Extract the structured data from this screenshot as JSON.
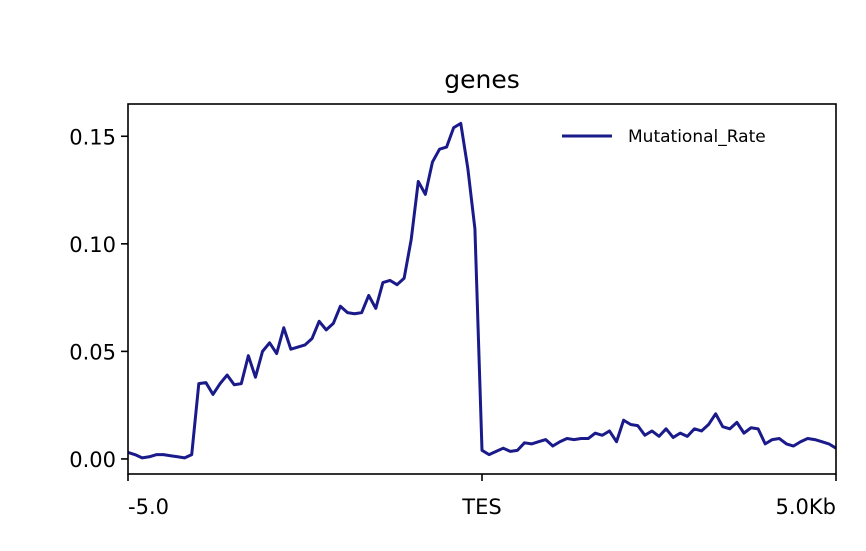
{
  "chart_data": {
    "type": "line",
    "title": "genes",
    "xlabel": "",
    "ylabel": "",
    "x_ticks": [
      {
        "value": -5.0,
        "label": "-5.0"
      },
      {
        "value": 0,
        "label": "TES"
      },
      {
        "value": 5.0,
        "label": "5.0Kb"
      }
    ],
    "y_ticks": [
      {
        "value": 0.0,
        "label": "0.00"
      },
      {
        "value": 0.05,
        "label": "0.05"
      },
      {
        "value": 0.1,
        "label": "0.10"
      },
      {
        "value": 0.15,
        "label": "0.15"
      }
    ],
    "xlim": [
      -5.0,
      5.0
    ],
    "ylim": [
      -0.007,
      0.165
    ],
    "grid": false,
    "legend_position": "top-right",
    "series": [
      {
        "name": "Mutational_Rate",
        "color": "#1a1a8a",
        "points": [
          [
            -5.0,
            0.003
          ],
          [
            -4.9,
            0.002
          ],
          [
            -4.8,
            0.0005
          ],
          [
            -4.7,
            0.001
          ],
          [
            -4.6,
            0.002
          ],
          [
            -4.5,
            0.002
          ],
          [
            -4.4,
            0.0015
          ],
          [
            -4.3,
            0.001
          ],
          [
            -4.2,
            0.0005
          ],
          [
            -4.1,
            0.002
          ],
          [
            -4.0,
            0.035
          ],
          [
            -3.9,
            0.0355
          ],
          [
            -3.8,
            0.03
          ],
          [
            -3.7,
            0.035
          ],
          [
            -3.6,
            0.039
          ],
          [
            -3.5,
            0.0345
          ],
          [
            -3.4,
            0.035
          ],
          [
            -3.3,
            0.048
          ],
          [
            -3.2,
            0.038
          ],
          [
            -3.1,
            0.05
          ],
          [
            -3.0,
            0.054
          ],
          [
            -2.9,
            0.049
          ],
          [
            -2.8,
            0.061
          ],
          [
            -2.7,
            0.051
          ],
          [
            -2.6,
            0.052
          ],
          [
            -2.5,
            0.053
          ],
          [
            -2.4,
            0.056
          ],
          [
            -2.3,
            0.064
          ],
          [
            -2.2,
            0.06
          ],
          [
            -2.1,
            0.063
          ],
          [
            -2.0,
            0.071
          ],
          [
            -1.9,
            0.068
          ],
          [
            -1.8,
            0.0675
          ],
          [
            -1.7,
            0.068
          ],
          [
            -1.6,
            0.076
          ],
          [
            -1.5,
            0.07
          ],
          [
            -1.4,
            0.082
          ],
          [
            -1.3,
            0.083
          ],
          [
            -1.2,
            0.081
          ],
          [
            -1.1,
            0.084
          ],
          [
            -1.0,
            0.102
          ],
          [
            -0.9,
            0.129
          ],
          [
            -0.8,
            0.123
          ],
          [
            -0.7,
            0.138
          ],
          [
            -0.6,
            0.144
          ],
          [
            -0.5,
            0.145
          ],
          [
            -0.4,
            0.154
          ],
          [
            -0.3,
            0.156
          ],
          [
            -0.2,
            0.135
          ],
          [
            -0.1,
            0.107
          ],
          [
            0.0,
            0.004
          ],
          [
            0.1,
            0.002
          ],
          [
            0.2,
            0.0035
          ],
          [
            0.3,
            0.005
          ],
          [
            0.4,
            0.0035
          ],
          [
            0.5,
            0.004
          ],
          [
            0.6,
            0.0075
          ],
          [
            0.7,
            0.007
          ],
          [
            0.8,
            0.008
          ],
          [
            0.9,
            0.009
          ],
          [
            1.0,
            0.006
          ],
          [
            1.1,
            0.008
          ],
          [
            1.2,
            0.0095
          ],
          [
            1.3,
            0.009
          ],
          [
            1.4,
            0.0095
          ],
          [
            1.5,
            0.0095
          ],
          [
            1.6,
            0.012
          ],
          [
            1.7,
            0.011
          ],
          [
            1.8,
            0.013
          ],
          [
            1.9,
            0.008
          ],
          [
            2.0,
            0.018
          ],
          [
            2.1,
            0.016
          ],
          [
            2.2,
            0.0155
          ],
          [
            2.3,
            0.011
          ],
          [
            2.4,
            0.013
          ],
          [
            2.5,
            0.0105
          ],
          [
            2.6,
            0.014
          ],
          [
            2.7,
            0.01
          ],
          [
            2.8,
            0.012
          ],
          [
            2.9,
            0.0105
          ],
          [
            3.0,
            0.014
          ],
          [
            3.1,
            0.013
          ],
          [
            3.2,
            0.016
          ],
          [
            3.3,
            0.021
          ],
          [
            3.4,
            0.015
          ],
          [
            3.5,
            0.014
          ],
          [
            3.6,
            0.017
          ],
          [
            3.7,
            0.012
          ],
          [
            3.8,
            0.0145
          ],
          [
            3.9,
            0.014
          ],
          [
            4.0,
            0.007
          ],
          [
            4.1,
            0.009
          ],
          [
            4.2,
            0.0095
          ],
          [
            4.3,
            0.007
          ],
          [
            4.4,
            0.006
          ],
          [
            4.5,
            0.008
          ],
          [
            4.6,
            0.0095
          ],
          [
            4.7,
            0.009
          ],
          [
            4.8,
            0.008
          ],
          [
            4.9,
            0.007
          ],
          [
            5.0,
            0.005
          ]
        ]
      }
    ]
  }
}
